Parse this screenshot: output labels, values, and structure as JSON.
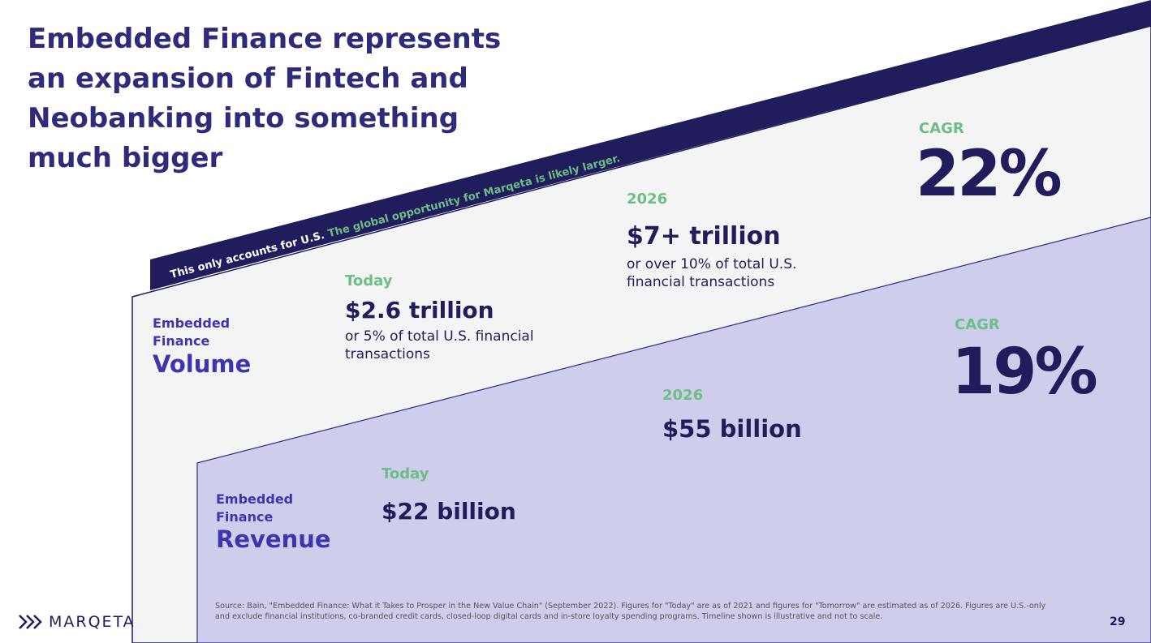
{
  "header": {
    "title_lines": [
      "Embedded Finance represents",
      "an expansion of Fintech and",
      "Neobanking into something",
      "much bigger"
    ]
  },
  "banner": {
    "text": "This only accounts for U.S.",
    "highlight": "The global opportunity for Marqeta is likely larger."
  },
  "volume": {
    "label_small": "Embedded Finance",
    "label_large": "Volume",
    "today": {
      "label": "Today",
      "value": "$2.6 trillion",
      "note": "or 5% of total U.S. financial transactions"
    },
    "future": {
      "label": "2026",
      "value": "$7+ trillion",
      "note": "or over 10% of total U.S. financial transactions"
    },
    "cagr": {
      "label": "CAGR",
      "value": "22%"
    }
  },
  "revenue": {
    "label_small": "Embedded Finance",
    "label_large": "Revenue",
    "today": {
      "label": "Today",
      "value": "$22 billion"
    },
    "future": {
      "label": "2026",
      "value": "$55 billion"
    },
    "cagr": {
      "label": "CAGR",
      "value": "19%"
    }
  },
  "footer": {
    "source": "Source: Bain, \"Embedded Finance: What it Takes to Prosper in the New Value Chain\" (September 2022). Figures for \"Today\" are as of 2021 and figures for \"Tomorrow\" are estimated as of 2026. Figures are U.S.-only and exclude financial institutions, co-branded credit cards, closed-loop digital cards and in-store loyalty spending programs. Timeline shown is illustrative and not to scale.",
    "logo": "MARQETA",
    "page": "29"
  }
}
